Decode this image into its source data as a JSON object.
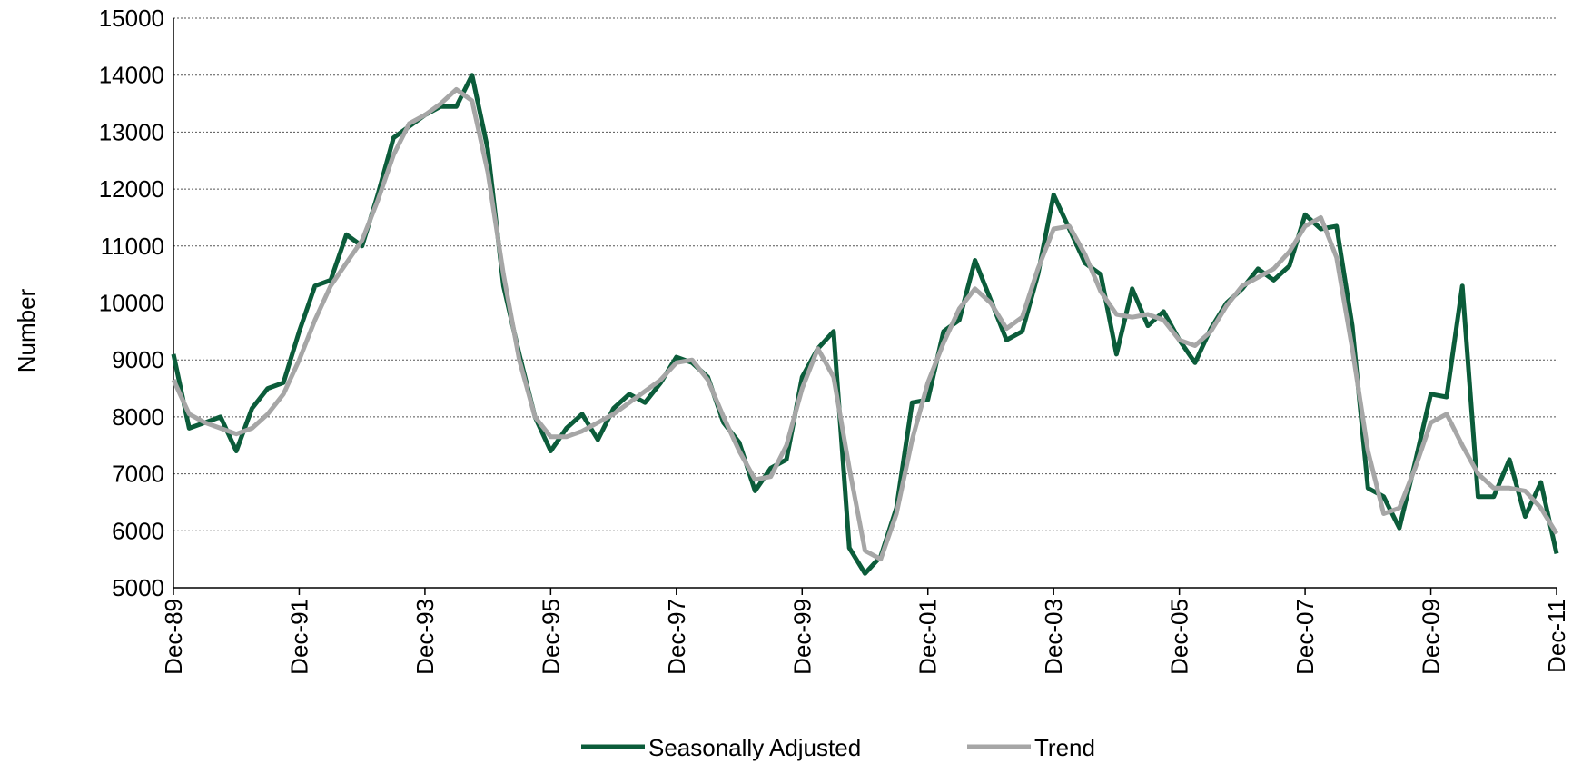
{
  "chart_data": {
    "type": "line",
    "y_label": "Number",
    "categories": [
      "Dec-89",
      null,
      null,
      null,
      null,
      null,
      null,
      null,
      "Dec-91",
      null,
      null,
      null,
      null,
      null,
      null,
      null,
      "Dec-93",
      null,
      null,
      null,
      null,
      null,
      null,
      null,
      "Dec-95",
      null,
      null,
      null,
      null,
      null,
      null,
      null,
      "Dec-97",
      null,
      null,
      null,
      null,
      null,
      null,
      null,
      "Dec-99",
      null,
      null,
      null,
      null,
      null,
      null,
      null,
      "Dec-01",
      null,
      null,
      null,
      null,
      null,
      null,
      null,
      "Dec-03",
      null,
      null,
      null,
      null,
      null,
      null,
      null,
      "Dec-05",
      null,
      null,
      null,
      null,
      null,
      null,
      null,
      "Dec-07",
      null,
      null,
      null,
      null,
      null,
      null,
      null,
      "Dec-09",
      null,
      null,
      null,
      null,
      null,
      null,
      null,
      "Dec-11"
    ],
    "series": [
      {
        "name": "Seasonally Adjusted",
        "color": "#0b5c3a",
        "values": [
          9100,
          7800,
          7900,
          8000,
          7400,
          8150,
          8500,
          8600,
          9500,
          10300,
          10400,
          11200,
          11000,
          11900,
          12900,
          13100,
          13300,
          13450,
          13450,
          14000,
          12700,
          10300,
          9100,
          8000,
          7400,
          7800,
          8050,
          7600,
          8150,
          8400,
          8250,
          8600,
          9050,
          8950,
          8700,
          7900,
          7550,
          6700,
          7100,
          7250,
          8700,
          9200,
          9500,
          5700,
          5250,
          5550,
          6400,
          8250,
          8300,
          9500,
          9700,
          10750,
          10050,
          9350,
          9500,
          10500,
          11900,
          11300,
          10700,
          10500,
          9100,
          10250,
          9600,
          9850,
          9350,
          8950,
          9550,
          10000,
          10250,
          10600,
          10400,
          10650,
          11550,
          11300,
          11350,
          9600,
          6750,
          6600,
          6050,
          7200,
          8400,
          8350,
          10300,
          6600,
          6600,
          7250,
          6250,
          6850,
          5600
        ]
      },
      {
        "name": "Trend",
        "color": "#a6a6a6",
        "values": [
          8650,
          8050,
          7900,
          7800,
          7700,
          7800,
          8050,
          8400,
          9000,
          9700,
          10300,
          10700,
          11100,
          11800,
          12600,
          13150,
          13300,
          13500,
          13750,
          13550,
          12300,
          10500,
          9000,
          8000,
          7650,
          7650,
          7750,
          7900,
          8050,
          8250,
          8450,
          8650,
          8950,
          9000,
          8650,
          8000,
          7400,
          6900,
          6950,
          7500,
          8500,
          9200,
          8700,
          7100,
          5650,
          5500,
          6300,
          7600,
          8600,
          9300,
          9900,
          10250,
          10000,
          9550,
          9750,
          10600,
          11300,
          11350,
          10850,
          10200,
          9800,
          9750,
          9800,
          9700,
          9350,
          9250,
          9500,
          9950,
          10300,
          10450,
          10600,
          10900,
          11350,
          11500,
          10800,
          9200,
          7400,
          6300,
          6400,
          7100,
          7900,
          8050,
          7500,
          7000,
          6750,
          6750,
          6700,
          6400,
          5950
        ]
      }
    ],
    "ylim": [
      5000,
      15000
    ],
    "yticks": [
      5000,
      6000,
      7000,
      8000,
      9000,
      10000,
      11000,
      12000,
      13000,
      14000,
      15000
    ],
    "grid": true,
    "legend": "bottom"
  }
}
